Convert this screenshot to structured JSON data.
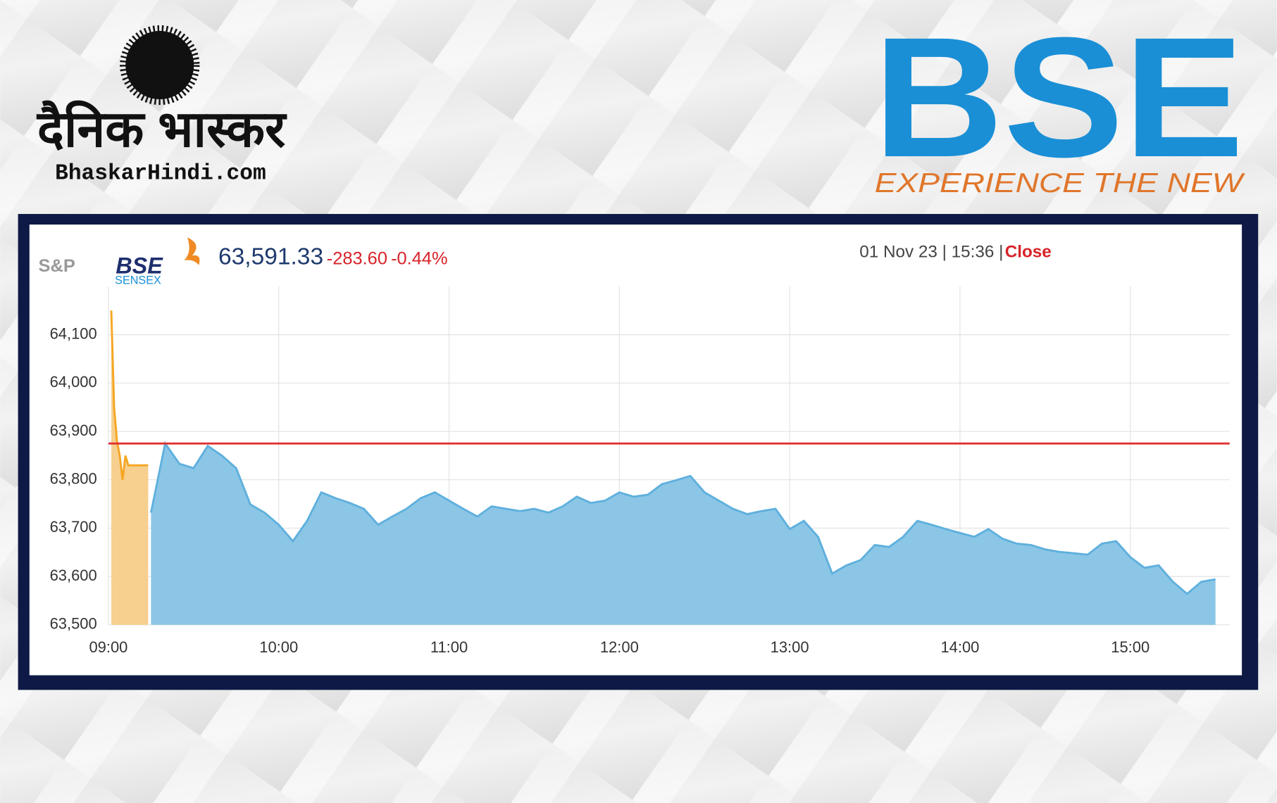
{
  "logos": {
    "left_title": "दैनिक भास्कर",
    "left_site": "BhaskarHindi.com",
    "right_title": "BSE",
    "right_tagline": "EXPERIENCE THE NEW"
  },
  "header": {
    "brand_sp": "S&P",
    "brand_bse": "BSE",
    "brand_index": "SENSEX",
    "price": "63,591.33",
    "change": "-283.60",
    "change_pct": "-0.44%",
    "timestamp": "01 Nov 23 | 15:36 |",
    "status": "Close"
  },
  "chart_data": {
    "type": "area",
    "xlim": [
      "09:00",
      "15:35"
    ],
    "xticks": [
      "09:00",
      "10:00",
      "11:00",
      "12:00",
      "13:00",
      "14:00",
      "15:00"
    ],
    "ylim": [
      63500,
      64200
    ],
    "yticks": [
      {
        "value": 63500,
        "label": "63,500"
      },
      {
        "value": 63600,
        "label": "63,600"
      },
      {
        "value": 63700,
        "label": "63,700"
      },
      {
        "value": 63800,
        "label": "63,800"
      },
      {
        "value": 63900,
        "label": "63,900"
      },
      {
        "value": 64000,
        "label": "64,000"
      },
      {
        "value": 64100,
        "label": "64,100"
      }
    ],
    "grid": true,
    "reference_line": {
      "value": 63875,
      "color": "#e03030"
    },
    "series": [
      {
        "color": "#f7cf8e",
        "line_color": "#f5a623",
        "x": [
          "09:01",
          "09:02",
          "09:03",
          "09:04",
          "09:05",
          "09:06",
          "09:07",
          "09:14"
        ],
        "values": [
          64150,
          63950,
          63880,
          63850,
          63800,
          63850,
          63830,
          63830
        ]
      },
      {
        "color": "#8cc6e6",
        "line_color": "#5fb0dd",
        "x": [
          "09:15",
          "09:20",
          "09:25",
          "09:30",
          "09:35",
          "09:40",
          "09:45",
          "09:50",
          "09:55",
          "10:00",
          "10:05",
          "10:10",
          "10:15",
          "10:20",
          "10:25",
          "10:30",
          "10:35",
          "10:40",
          "10:45",
          "10:50",
          "10:55",
          "11:00",
          "11:05",
          "11:10",
          "11:15",
          "11:20",
          "11:25",
          "11:30",
          "11:35",
          "11:40",
          "11:45",
          "11:50",
          "11:55",
          "12:00",
          "12:05",
          "12:10",
          "12:15",
          "12:20",
          "12:25",
          "12:30",
          "12:35",
          "12:40",
          "12:45",
          "12:50",
          "12:55",
          "13:00",
          "13:05",
          "13:10",
          "13:15",
          "13:20",
          "13:25",
          "13:30",
          "13:35",
          "13:40",
          "13:45",
          "13:50",
          "13:55",
          "14:00",
          "14:05",
          "14:10",
          "14:15",
          "14:20",
          "14:25",
          "14:30",
          "14:35",
          "14:40",
          "14:45",
          "14:50",
          "14:55",
          "15:00",
          "15:05",
          "15:10",
          "15:15",
          "15:20",
          "15:25",
          "15:30"
        ],
        "values": [
          63732,
          63875,
          63833,
          63824,
          63870,
          63850,
          63824,
          63749,
          63732,
          63707,
          63673,
          63715,
          63774,
          63762,
          63752,
          63740,
          63707,
          63724,
          63740,
          63762,
          63774,
          63757,
          63740,
          63724,
          63745,
          63740,
          63735,
          63740,
          63732,
          63745,
          63765,
          63752,
          63757,
          63774,
          63765,
          63769,
          63791,
          63799,
          63808,
          63774,
          63757,
          63740,
          63729,
          63735,
          63740,
          63698,
          63715,
          63682,
          63606,
          63623,
          63634,
          63665,
          63661,
          63682,
          63715,
          63707,
          63698,
          63690,
          63682,
          63698,
          63678,
          63668,
          63665,
          63656,
          63651,
          63648,
          63645,
          63668,
          63673,
          63640,
          63618,
          63623,
          63589,
          63564,
          63589,
          63594
        ]
      }
    ]
  }
}
